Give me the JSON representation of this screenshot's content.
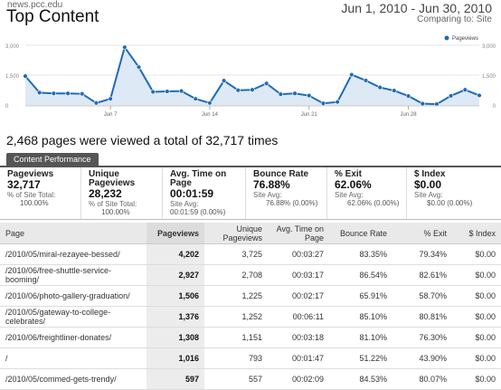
{
  "header": {
    "site": "news.pcc.edu",
    "title": "Top Content",
    "date_range": "Jun 1, 2010 - Jun 30, 2010",
    "comparing": "Comparing to: Site"
  },
  "chart_data": {
    "type": "line",
    "series": [
      {
        "name": "Pageviews",
        "values": [
          1450,
          620,
          580,
          580,
          560,
          100,
          310,
          2900,
          1900,
          660,
          680,
          700,
          310,
          100,
          1220,
          740,
          760,
          1080,
          540,
          580,
          470,
          80,
          150,
          1520,
          1230,
          880,
          720,
          450,
          70,
          40,
          460,
          760,
          480
        ]
      }
    ],
    "x_labels": [
      "Jun 7",
      "Jun 14",
      "Jun 21",
      "Jun 28"
    ],
    "y_ticks": [
      "3,000",
      "1,500",
      "0"
    ],
    "y_ticks_right": [
      "3,000",
      "1,500",
      "0"
    ],
    "ylim": [
      0,
      3000
    ],
    "legend": "top-right",
    "line_color": "#1f6bb5",
    "fill_color": "#dde9f5"
  },
  "summary": "2,468 pages were viewed a total of 32,717 times",
  "tab": "Content Performance",
  "metrics": [
    {
      "label": "Pageviews",
      "value": "32,717",
      "sub": "% of Site Total:",
      "sub2": "100.00%"
    },
    {
      "label": "Unique Pageviews",
      "value": "28,232",
      "sub": "% of Site Total:",
      "sub2": "100.00%"
    },
    {
      "label": "Avg. Time on Page",
      "value": "00:01:59",
      "sub": "Site Avg:",
      "sub2": "00:01:59 (0.00%)"
    },
    {
      "label": "Bounce Rate",
      "value": "76.88%",
      "sub": "Site Avg:",
      "sub2": "76.88% (0.00%)"
    },
    {
      "label": "% Exit",
      "value": "62.06%",
      "sub": "Site Avg:",
      "sub2": "62.06% (0.00%)"
    },
    {
      "label": "$ Index",
      "value": "$0.00",
      "sub": "Site Avg:",
      "sub2": "$0.00 (0.00%)"
    }
  ],
  "table": {
    "columns": [
      "Page",
      "Pageviews",
      "Unique Pageviews",
      "Avg. Time on Page",
      "Bounce Rate",
      "% Exit",
      "$ Index"
    ],
    "rows": [
      [
        "/2010/05/miral-rezayee-bessed/",
        "4,202",
        "3,725",
        "00:03:27",
        "83.35%",
        "79.34%",
        "$0.00"
      ],
      [
        "/2010/06/free-shuttle-service-booming/",
        "2,927",
        "2,708",
        "00:03:17",
        "86.54%",
        "82.61%",
        "$0.00"
      ],
      [
        "/2010/06/photo-gallery-graduation/",
        "1,506",
        "1,225",
        "00:02:17",
        "65.91%",
        "58.70%",
        "$0.00"
      ],
      [
        "/2010/05/gateway-to-college-celebrates/",
        "1,376",
        "1,252",
        "00:06:11",
        "85.10%",
        "80.81%",
        "$0.00"
      ],
      [
        "/2010/06/freightliner-donates/",
        "1,308",
        "1,151",
        "00:03:18",
        "81.10%",
        "76.30%",
        "$0.00"
      ],
      [
        "/",
        "1,016",
        "793",
        "00:01:47",
        "51.22%",
        "43.90%",
        "$0.00"
      ],
      [
        "/2010/05/commed-gets-trendy/",
        "597",
        "557",
        "00:02:09",
        "84.53%",
        "80.07%",
        "$0.00"
      ]
    ]
  }
}
